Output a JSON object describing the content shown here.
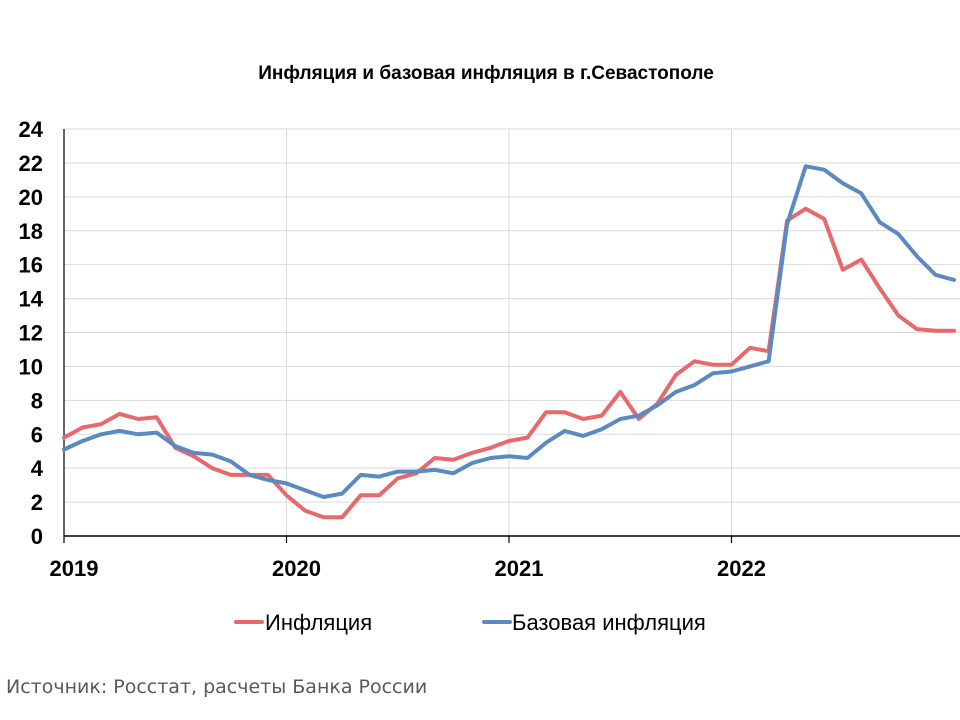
{
  "chart_data": {
    "type": "line",
    "title": "Инфляция и базовая инфляция в г.Севастополе",
    "xlabel": "",
    "ylabel": "",
    "ylim": [
      0,
      24
    ],
    "yticks": [
      0,
      2,
      4,
      6,
      8,
      10,
      12,
      14,
      16,
      18,
      20,
      22,
      24
    ],
    "xtick_labels": [
      "2019",
      "2020",
      "2021",
      "2022"
    ],
    "x_start": "2019-01",
    "grid": true,
    "legend_position": "bottom",
    "series": [
      {
        "name": "Инфляция",
        "color": "#e8696b",
        "values": [
          5.8,
          6.4,
          6.6,
          7.2,
          6.9,
          7.0,
          5.2,
          4.7,
          4.0,
          3.6,
          3.6,
          3.6,
          2.4,
          1.5,
          1.1,
          1.1,
          2.4,
          2.4,
          3.4,
          3.7,
          4.6,
          4.5,
          4.9,
          5.2,
          5.6,
          5.8,
          7.3,
          7.3,
          6.9,
          7.1,
          8.5,
          6.9,
          7.8,
          9.5,
          10.3,
          10.1,
          10.1,
          11.1,
          10.9,
          18.6,
          19.3,
          18.7,
          15.7,
          16.3,
          14.6,
          13.0,
          12.2,
          12.1,
          12.1
        ]
      },
      {
        "name": "Базовая инфляция",
        "color": "#5b8ac1",
        "values": [
          5.1,
          5.6,
          6.0,
          6.2,
          6.0,
          6.1,
          5.3,
          4.9,
          4.8,
          4.4,
          3.6,
          3.3,
          3.1,
          2.7,
          2.3,
          2.5,
          3.6,
          3.5,
          3.8,
          3.8,
          3.9,
          3.7,
          4.3,
          4.6,
          4.7,
          4.6,
          5.5,
          6.2,
          5.9,
          6.3,
          6.9,
          7.1,
          7.7,
          8.5,
          8.9,
          9.6,
          9.7,
          10.0,
          10.3,
          18.4,
          21.8,
          21.6,
          20.8,
          20.2,
          18.5,
          17.8,
          16.5,
          15.4,
          15.1
        ]
      }
    ]
  },
  "source_text": "Источник: Росстат, расчеты Банка России"
}
